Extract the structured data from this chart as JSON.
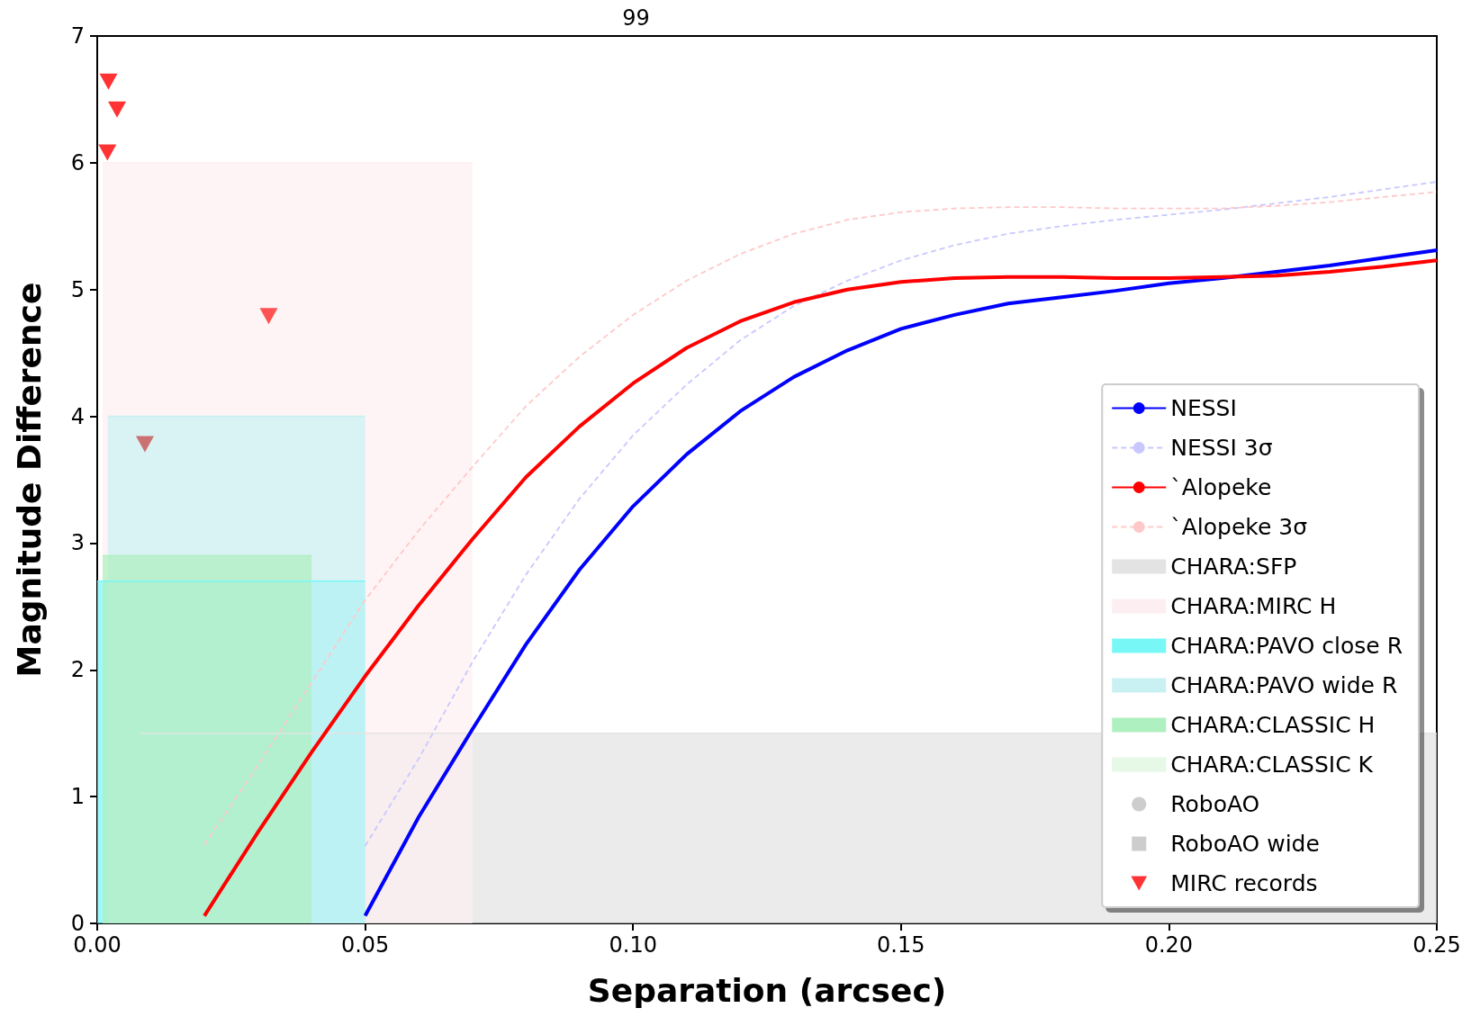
{
  "chart_data": {
    "type": "line",
    "xlabel": "Separation (arcsec)",
    "ylabel": "Magnitude Difference",
    "annotations": [
      "99"
    ],
    "xlim": [
      0,
      0.25
    ],
    "xticks": [
      {
        "value": 0,
        "label": "0.00"
      },
      {
        "value": 0.05,
        "label": "0.05"
      },
      {
        "value": 0.1,
        "label": "0.10"
      },
      {
        "value": 0.15,
        "label": "0.15"
      },
      {
        "value": 0.2,
        "label": "0.20"
      },
      {
        "value": 0.25,
        "label": "0.25"
      }
    ],
    "ylim": [
      0,
      7
    ],
    "yticks": [
      0,
      1,
      2,
      3,
      4,
      5,
      6,
      7
    ],
    "grid": false,
    "legend": "bottom right",
    "series": [
      {
        "name": "NESSI",
        "color": "#0000ff",
        "line_style": "solid",
        "marker": "none",
        "x": [
          0.05,
          0.06,
          0.07,
          0.08,
          0.09,
          0.1,
          0.11,
          0.12,
          0.13,
          0.14,
          0.15,
          0.16,
          0.17,
          0.18,
          0.19,
          0.2,
          0.21,
          0.22,
          0.23,
          0.24,
          0.25
        ],
        "values": [
          0.06,
          0.84,
          1.53,
          2.2,
          2.79,
          3.29,
          3.7,
          4.04,
          4.31,
          4.52,
          4.69,
          4.8,
          4.89,
          4.94,
          4.99,
          5.05,
          5.09,
          5.14,
          5.19,
          5.25,
          5.31
        ]
      },
      {
        "name": "NESSI 3σ",
        "color": "#c8c8ff",
        "line_style": "dashed",
        "marker": "none",
        "x": [
          0.05,
          0.06,
          0.07,
          0.08,
          0.09,
          0.1,
          0.11,
          0.12,
          0.13,
          0.14,
          0.15,
          0.16,
          0.17,
          0.18,
          0.19,
          0.2,
          0.21,
          0.22,
          0.23,
          0.24,
          0.25
        ],
        "values": [
          0.61,
          1.3,
          2.06,
          2.75,
          3.35,
          3.85,
          4.25,
          4.6,
          4.87,
          5.07,
          5.23,
          5.35,
          5.44,
          5.5,
          5.55,
          5.59,
          5.63,
          5.68,
          5.73,
          5.79,
          5.85
        ]
      },
      {
        "name": "`Alopeke",
        "color": "#ff0000",
        "line_style": "solid",
        "marker": "none",
        "x": [
          0.02,
          0.03,
          0.04,
          0.05,
          0.06,
          0.07,
          0.08,
          0.09,
          0.1,
          0.11,
          0.12,
          0.13,
          0.14,
          0.15,
          0.16,
          0.17,
          0.18,
          0.19,
          0.2,
          0.21,
          0.22,
          0.23,
          0.24,
          0.25
        ],
        "values": [
          0.06,
          0.72,
          1.35,
          1.95,
          2.51,
          3.03,
          3.52,
          3.92,
          4.26,
          4.54,
          4.75,
          4.9,
          5.0,
          5.06,
          5.09,
          5.1,
          5.1,
          5.09,
          5.09,
          5.1,
          5.11,
          5.14,
          5.18,
          5.23
        ]
      },
      {
        "name": "`Alopeke 3σ",
        "color": "#ffc8c8",
        "line_style": "dashed",
        "marker": "none",
        "x": [
          0.02,
          0.03,
          0.04,
          0.05,
          0.06,
          0.07,
          0.08,
          0.09,
          0.1,
          0.11,
          0.12,
          0.13,
          0.14,
          0.15,
          0.16,
          0.17,
          0.18,
          0.19,
          0.2,
          0.21,
          0.22,
          0.23,
          0.24,
          0.25
        ],
        "values": [
          0.62,
          1.25,
          1.9,
          2.55,
          3.1,
          3.6,
          4.08,
          4.47,
          4.8,
          5.07,
          5.28,
          5.44,
          5.55,
          5.61,
          5.64,
          5.65,
          5.65,
          5.64,
          5.64,
          5.64,
          5.66,
          5.69,
          5.73,
          5.77
        ]
      },
      {
        "name": "CHARA:SFP",
        "type": "area",
        "color": "#e3e3e3",
        "x": [
          0.008,
          0.25
        ],
        "values": [
          1.5,
          1.5
        ]
      },
      {
        "name": "CHARA:MIRC H",
        "type": "area",
        "color": "#fdeff1",
        "x": [
          0.001,
          0.07
        ],
        "values": [
          6.0,
          6.0
        ]
      },
      {
        "name": "CHARA:PAVO close R",
        "type": "area",
        "color": "#78f7f7",
        "x": [
          0.0,
          0.05
        ],
        "values": [
          2.7,
          2.7
        ]
      },
      {
        "name": "CHARA:PAVO wide R",
        "type": "area",
        "color": "#c9f1f3",
        "x": [
          0.002,
          0.05
        ],
        "values": [
          4.0,
          4.0
        ]
      },
      {
        "name": "CHARA:CLASSIC H",
        "type": "area",
        "color": "#aef0bf",
        "x": [
          0.001,
          0.04
        ],
        "values": [
          2.9,
          2.9
        ]
      },
      {
        "name": "CHARA:CLASSIC K",
        "type": "area",
        "color": "#e6f8e6"
      },
      {
        "name": "RoboAO",
        "type": "scatter",
        "color": "#c0c0c0",
        "marker": "circle"
      },
      {
        "name": "RoboAO wide",
        "type": "scatter",
        "color": "#c0c0c0",
        "marker": "square"
      },
      {
        "name": "MIRC records",
        "type": "scatter",
        "color": "#ff0000",
        "marker": "triangle",
        "x": [
          0.0021,
          0.0037,
          0.0019,
          0.032,
          0.0089
        ],
        "values": [
          6.64,
          6.42,
          6.08,
          4.79,
          3.78
        ],
        "colors": [
          "#ff0000",
          "#ff0000",
          "#ff0000",
          "#ff2a2a",
          "#c85050"
        ]
      }
    ]
  }
}
